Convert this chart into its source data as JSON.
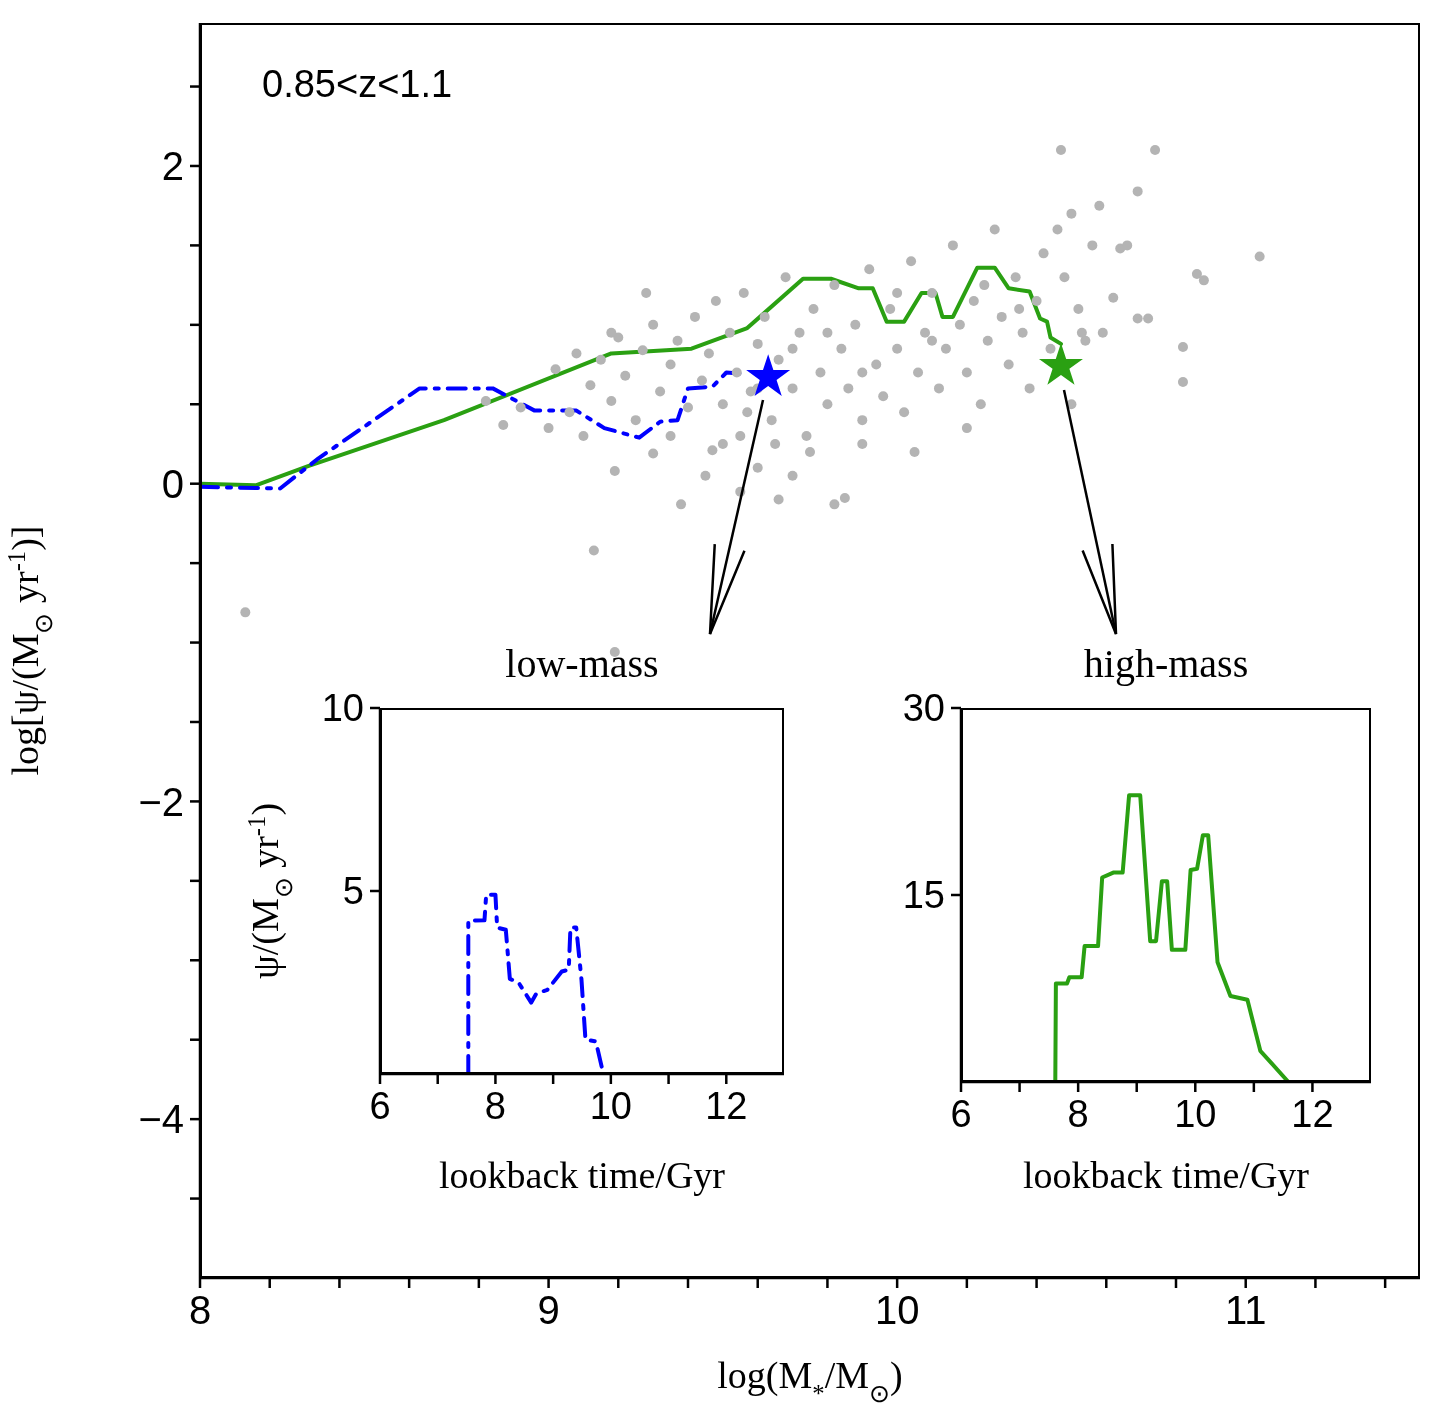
{
  "chart_data": [
    {
      "type": "scatter",
      "xlabel": "log(M$_{*}$/M$_{⊙}$)",
      "ylabel": "log[ψ/(M$_{⊙}$ yr$^{-1}$)]",
      "annotations": [
        "0.85<z<1.1"
      ],
      "xlim": [
        8,
        11.5
      ],
      "ylim": [
        -5,
        2.9
      ],
      "xticks": [
        8,
        {
          "value": 8.2,
          "label": null
        },
        {
          "value": 8.4,
          "label": null
        },
        {
          "value": 8.6,
          "label": null
        },
        {
          "value": 8.8,
          "label": null
        },
        9,
        {
          "value": 9.2,
          "label": null
        },
        {
          "value": 9.4,
          "label": null
        },
        {
          "value": 9.6,
          "label": null
        },
        {
          "value": 9.8,
          "label": null
        },
        10,
        {
          "value": 10.2,
          "label": null
        },
        {
          "value": 10.4,
          "label": null
        },
        {
          "value": 10.6,
          "label": null
        },
        {
          "value": 10.8,
          "label": null
        },
        11,
        {
          "value": 11.2,
          "label": null
        },
        {
          "value": 11.4,
          "label": null
        }
      ],
      "yticks": [
        {
          "value": -4.5,
          "label": null
        },
        {
          "value": -4,
          "label": "−4"
        },
        {
          "value": -3.5,
          "label": null
        },
        {
          "value": -3,
          "label": null
        },
        {
          "value": -2.5,
          "label": null
        },
        {
          "value": -2,
          "label": "−2"
        },
        {
          "value": -1.5,
          "label": null
        },
        {
          "value": -1,
          "label": null
        },
        {
          "value": -0.5,
          "label": null
        },
        0,
        {
          "value": 0.5,
          "label": null
        },
        {
          "value": 1,
          "label": null
        },
        {
          "value": 1.5,
          "label": null
        },
        2,
        {
          "value": 2.5,
          "label": null
        }
      ],
      "series": [
        {
          "color": "#b4b4b4",
          "marker": "circle",
          "x": [
            8.13,
            9.13,
            9.38,
            9.19,
            9.85,
            9.82,
            9.19,
            9.3,
            9.47,
            9.55,
            9.6,
            9.65,
            9.7,
            9.75,
            9.57,
            8.82,
            8.87,
            8.92,
            9.0,
            9.02,
            9.06,
            9.08,
            9.12,
            9.15,
            9.18,
            9.2,
            9.22,
            9.25,
            9.27,
            9.3,
            9.32,
            9.35,
            9.37,
            9.4,
            9.42,
            9.44,
            9.46,
            9.48,
            9.5,
            9.52,
            9.54,
            9.56,
            9.58,
            9.6,
            9.62,
            9.64,
            9.66,
            9.68,
            9.7,
            9.72,
            9.74,
            9.76,
            9.78,
            9.8,
            9.82,
            9.84,
            9.86,
            9.88,
            9.9,
            9.92,
            9.94,
            9.96,
            9.98,
            10.0,
            10.02,
            10.04,
            10.06,
            10.08,
            10.1,
            10.12,
            10.14,
            10.16,
            10.18,
            10.2,
            10.22,
            10.24,
            10.26,
            10.28,
            10.3,
            10.32,
            10.34,
            10.36,
            10.38,
            10.4,
            10.42,
            10.44,
            10.46,
            10.48,
            10.5,
            10.52,
            10.54,
            10.56,
            10.58,
            10.47,
            10.74,
            10.69,
            11.04,
            10.72,
            10.82,
            10.82,
            10.86,
            10.88,
            10.64,
            10.62,
            10.59,
            10.69,
            10.5,
            10.53,
            10.66,
            9.66,
            9.9,
            10.05,
            10.2,
            9.35,
            9.45,
            9.5,
            9.55,
            9.6,
            9.7,
            9.8,
            9.9,
            10.0,
            10.1,
            10.25,
            10.35,
            9.28,
            9.18,
            9.1
          ],
          "values": [
            -0.81,
            -0.42,
            -0.13,
            0.08,
            -0.09,
            -0.13,
            -1.06,
            0.19,
            0.21,
            0.3,
            0.1,
            0.25,
            0.05,
            0.2,
            0.45,
            0.52,
            0.37,
            0.48,
            0.35,
            0.72,
            0.45,
            0.82,
            0.62,
            0.78,
            0.52,
            0.92,
            0.68,
            0.4,
            0.84,
            1.0,
            0.58,
            0.75,
            0.9,
            0.48,
            1.05,
            0.65,
            0.82,
            1.15,
            0.5,
            0.95,
            0.7,
            1.2,
            0.58,
            0.88,
            1.05,
            0.4,
            0.78,
            1.3,
            0.6,
            0.95,
            0.3,
            1.1,
            0.7,
            0.5,
            1.25,
            0.85,
            0.6,
            1.0,
            0.4,
            1.35,
            0.75,
            0.55,
            1.1,
            0.85,
            0.45,
            1.4,
            0.7,
            0.95,
            1.2,
            0.6,
            0.85,
            1.5,
            1.0,
            0.7,
            1.15,
            0.5,
            0.9,
            1.6,
            1.05,
            0.75,
            1.3,
            0.95,
            0.6,
            1.15,
            1.45,
            0.85,
            1.6,
            1.3,
            1.7,
            1.1,
            0.9,
            1.5,
            1.75,
            2.1,
            2.1,
            1.84,
            1.43,
            1.04,
            0.86,
            0.64,
            1.32,
            1.28,
            1.48,
            1.17,
            0.95,
            1.04,
            0.5,
            0.95,
            1.5,
            -0.1,
            0.25,
            0.2,
            0.35,
            0.3,
            0.05,
            0.25,
            -0.05,
            0.6,
            0.85,
            0.95,
            0.7,
            1.2,
            0.9,
            1.25,
            1.1,
            1.2,
            0.95,
            0.3
          ]
        },
        {
          "type": "line",
          "color": "#2aa012",
          "line_style": "solid",
          "marker": "none",
          "x": [
            8.0,
            8.16,
            8.31,
            8.7,
            9.18,
            9.41,
            9.57,
            9.73,
            9.81,
            9.89,
            9.93,
            9.97,
            10.02,
            10.07,
            10.11,
            10.13,
            10.16,
            10.23,
            10.28,
            10.32,
            10.38,
            10.41,
            10.43,
            10.44,
            10.47
          ],
          "values": [
            0,
            -0.01,
            0.11,
            0.4,
            0.82,
            0.85,
            0.98,
            1.29,
            1.29,
            1.23,
            1.23,
            1.02,
            1.02,
            1.2,
            1.2,
            1.05,
            1.05,
            1.36,
            1.36,
            1.23,
            1.21,
            1.04,
            1.02,
            0.92,
            0.88
          ]
        },
        {
          "type": "line",
          "color": "#0000ff",
          "line_style": "dashed",
          "marker": "none",
          "x": [
            8.0,
            8.23,
            8.34,
            8.63,
            8.84,
            8.96,
            9.08,
            9.16,
            9.26,
            9.32,
            9.37,
            9.4,
            9.47,
            9.51,
            9.57
          ],
          "values": [
            -0.02,
            -0.03,
            0.16,
            0.6,
            0.6,
            0.46,
            0.46,
            0.35,
            0.29,
            0.39,
            0.4,
            0.6,
            0.61,
            0.7,
            0.69
          ]
        },
        {
          "color": "#0000ff",
          "marker": "star",
          "x": [
            9.63
          ],
          "values": [
            0.67
          ]
        },
        {
          "color": "#2aa012",
          "marker": "star",
          "x": [
            10.47
          ],
          "values": [
            0.74
          ]
        }
      ]
    },
    {
      "type": "line",
      "title": "low-mass",
      "xlabel": "lookback time/Gyr",
      "ylabel": "ψ/(M$_{⊙}$ yr$^{-1}$)",
      "xlim": [
        6,
        13
      ],
      "ylim": [
        0,
        10
      ],
      "xticks": [
        6,
        {
          "value": 7,
          "label": null
        },
        8,
        {
          "value": 9,
          "label": null
        },
        10,
        {
          "value": 11,
          "label": null
        },
        12
      ],
      "yticks": [
        5,
        10
      ],
      "series": [
        {
          "color": "#0000ff",
          "line_style": "dashed",
          "x": [
            7.53,
            7.53,
            7.81,
            7.84,
            8.0,
            8.03,
            8.18,
            8.25,
            8.4,
            8.62,
            8.71,
            8.9,
            9.15,
            9.27,
            9.3,
            9.4,
            9.49,
            9.56,
            9.74,
            9.87
          ],
          "values": [
            0,
            4.19,
            4.2,
            4.9,
            4.9,
            4.0,
            3.94,
            2.6,
            2.5,
            1.95,
            2.2,
            2.3,
            2.8,
            2.85,
            4.0,
            4.0,
            2.6,
            0.94,
            0.89,
            0
          ]
        }
      ]
    },
    {
      "type": "line",
      "title": "high-mass",
      "xlabel": "lookback time/Gyr",
      "xlim": [
        6,
        13
      ],
      "ylim": [
        0,
        30
      ],
      "xticks": [
        6,
        {
          "value": 7,
          "label": null
        },
        8,
        {
          "value": 9,
          "label": null
        },
        10,
        {
          "value": 11,
          "label": null
        },
        12
      ],
      "yticks": [
        15,
        30
      ],
      "series": [
        {
          "color": "#2aa012",
          "line_style": "solid",
          "x": [
            7.61,
            7.62,
            7.81,
            7.85,
            8.06,
            8.11,
            8.34,
            8.41,
            8.6,
            8.76,
            8.87,
            9.06,
            9.23,
            9.33,
            9.43,
            9.52,
            9.6,
            9.83,
            9.92,
            10.03,
            10.13,
            10.22,
            10.38,
            10.6,
            10.89,
            11.11,
            11.59
          ],
          "values": [
            0,
            7.9,
            7.9,
            8.4,
            8.4,
            10.9,
            10.9,
            16.4,
            16.8,
            16.8,
            23,
            23,
            11.3,
            11.3,
            16.1,
            16.1,
            10.6,
            10.6,
            17,
            17.1,
            19.8,
            19.8,
            9.6,
            6.9,
            6.6,
            2.5,
            0
          ]
        }
      ]
    }
  ]
}
